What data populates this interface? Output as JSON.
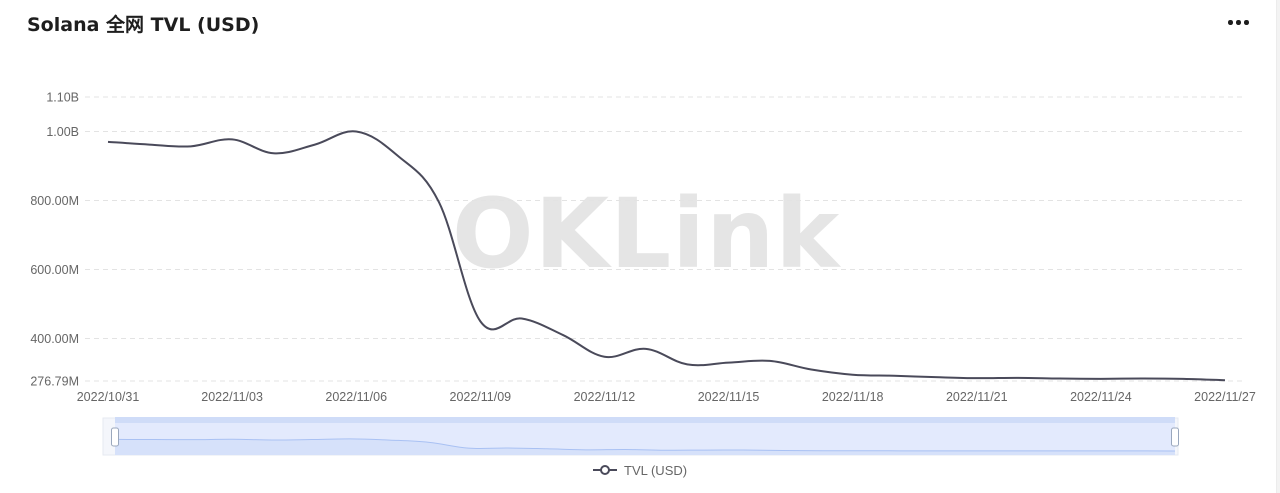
{
  "header": {
    "title": "Solana 全网 TVL (USD)",
    "menu_icon": "more-dots-icon"
  },
  "watermark": "OKLink",
  "legend": {
    "label": "TVL (USD)"
  },
  "colors": {
    "line": "#4a4a5a",
    "grid": "#e3e3e3",
    "zoom_fill": "#e3eafd",
    "zoom_line": "#a9c1f3"
  },
  "chart_data": {
    "type": "line",
    "title": "Solana 全网 TVL (USD)",
    "xlabel": "",
    "ylabel": "",
    "grid": true,
    "legend_position": "bottom",
    "y_ticks": [
      {
        "value": 276.79,
        "label": "276.79M"
      },
      {
        "value": 400,
        "label": "400.00M"
      },
      {
        "value": 600,
        "label": "600.00M"
      },
      {
        "value": 800,
        "label": "800.00M"
      },
      {
        "value": 1000,
        "label": "1.00B"
      },
      {
        "value": 1100,
        "label": "1.10B"
      }
    ],
    "x_ticks": [
      "2022/10/31",
      "2022/11/03",
      "2022/11/06",
      "2022/11/09",
      "2022/11/12",
      "2022/11/15",
      "2022/11/18",
      "2022/11/21",
      "2022/11/24",
      "2022/11/27"
    ],
    "ylim": [
      276.79,
      1100
    ],
    "units": "USD (millions)",
    "series": [
      {
        "name": "TVL (USD)",
        "points": [
          {
            "x": "2022/10/31",
            "y": 970
          },
          {
            "x": "2022/11/01",
            "y": 962
          },
          {
            "x": "2022/11/02",
            "y": 957
          },
          {
            "x": "2022/11/03",
            "y": 977
          },
          {
            "x": "2022/11/04",
            "y": 937
          },
          {
            "x": "2022/11/05",
            "y": 962
          },
          {
            "x": "2022/11/06",
            "y": 1000
          },
          {
            "x": "2022/11/07",
            "y": 930
          },
          {
            "x": "2022/11/08",
            "y": 795
          },
          {
            "x": "2022/11/09",
            "y": 450
          },
          {
            "x": "2022/11/10",
            "y": 458
          },
          {
            "x": "2022/11/11",
            "y": 410
          },
          {
            "x": "2022/11/12",
            "y": 347
          },
          {
            "x": "2022/11/13",
            "y": 370
          },
          {
            "x": "2022/11/14",
            "y": 325
          },
          {
            "x": "2022/11/15",
            "y": 330
          },
          {
            "x": "2022/11/16",
            "y": 335
          },
          {
            "x": "2022/11/17",
            "y": 310
          },
          {
            "x": "2022/11/18",
            "y": 295
          },
          {
            "x": "2022/11/19",
            "y": 292
          },
          {
            "x": "2022/11/20",
            "y": 288
          },
          {
            "x": "2022/11/21",
            "y": 285
          },
          {
            "x": "2022/11/22",
            "y": 286
          },
          {
            "x": "2022/11/23",
            "y": 284
          },
          {
            "x": "2022/11/24",
            "y": 283
          },
          {
            "x": "2022/11/25",
            "y": 284
          },
          {
            "x": "2022/11/26",
            "y": 283
          },
          {
            "x": "2022/11/27",
            "y": 279
          }
        ]
      }
    ]
  }
}
